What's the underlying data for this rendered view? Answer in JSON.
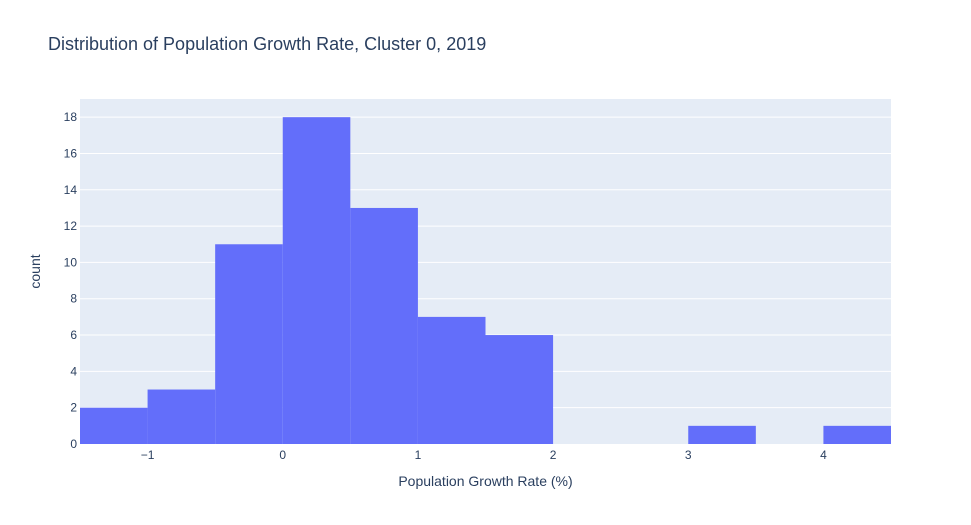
{
  "chart_data": {
    "type": "bar",
    "title": "Distribution of Population Growth Rate, Cluster 0, 2019",
    "xlabel": "Population Growth Rate (%)",
    "ylabel": "count",
    "bin_width": 0.5,
    "bins": [
      {
        "x0": -1.5,
        "x1": -1.0,
        "count": 2
      },
      {
        "x0": -1.0,
        "x1": -0.5,
        "count": 3
      },
      {
        "x0": -0.5,
        "x1": 0.0,
        "count": 11
      },
      {
        "x0": 0.0,
        "x1": 0.5,
        "count": 18
      },
      {
        "x0": 0.5,
        "x1": 1.0,
        "count": 13
      },
      {
        "x0": 1.0,
        "x1": 1.5,
        "count": 7
      },
      {
        "x0": 1.5,
        "x1": 2.0,
        "count": 6
      },
      {
        "x0": 2.0,
        "x1": 2.5,
        "count": 0
      },
      {
        "x0": 2.5,
        "x1": 3.0,
        "count": 0
      },
      {
        "x0": 3.0,
        "x1": 3.5,
        "count": 1
      },
      {
        "x0": 3.5,
        "x1": 4.0,
        "count": 0
      },
      {
        "x0": 4.0,
        "x1": 4.5,
        "count": 1
      }
    ],
    "xlim": [
      -1.5,
      4.5
    ],
    "ylim": [
      0,
      19
    ],
    "x_ticks": [
      {
        "value": -1,
        "label": "−1"
      },
      {
        "value": 0,
        "label": "0"
      },
      {
        "value": 1,
        "label": "1"
      },
      {
        "value": 2,
        "label": "2"
      },
      {
        "value": 3,
        "label": "3"
      },
      {
        "value": 4,
        "label": "4"
      }
    ],
    "y_ticks": [
      {
        "value": 0,
        "label": "0"
      },
      {
        "value": 2,
        "label": "2"
      },
      {
        "value": 4,
        "label": "4"
      },
      {
        "value": 6,
        "label": "6"
      },
      {
        "value": 8,
        "label": "8"
      },
      {
        "value": 10,
        "label": "10"
      },
      {
        "value": 12,
        "label": "12"
      },
      {
        "value": 14,
        "label": "14"
      },
      {
        "value": 16,
        "label": "16"
      },
      {
        "value": 18,
        "label": "18"
      }
    ],
    "grid": true,
    "colors": {
      "bar": "#636efa",
      "plot_bg": "#e5ecf6",
      "grid": "#ffffff",
      "text": "#2a3f5f"
    }
  }
}
